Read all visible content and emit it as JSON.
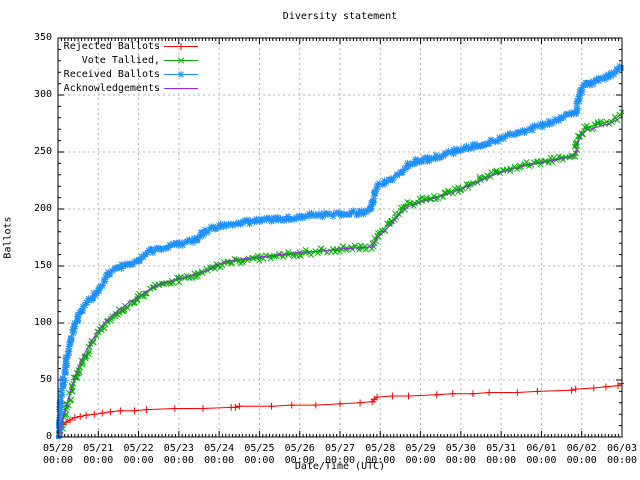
{
  "chart_data": {
    "type": "line",
    "title": "Diversity statement",
    "xlabel": "Date/Time (UTC)",
    "ylabel": "Ballots",
    "grid": true,
    "legend_position": "top-left",
    "ylim": [
      0,
      350
    ],
    "y_ticks": [
      0,
      50,
      100,
      150,
      200,
      250,
      300,
      350
    ],
    "x_axis_note": "x in days since 05/20 00:00 UTC, major tick per day",
    "xlim_days": [
      0,
      14
    ],
    "x_ticks": [
      {
        "date": "05/20",
        "time": "00:00"
      },
      {
        "date": "05/21",
        "time": "00:00"
      },
      {
        "date": "05/22",
        "time": "00:00"
      },
      {
        "date": "05/23",
        "time": "00:00"
      },
      {
        "date": "05/24",
        "time": "00:00"
      },
      {
        "date": "05/25",
        "time": "00:00"
      },
      {
        "date": "05/26",
        "time": "00:00"
      },
      {
        "date": "05/27",
        "time": "00:00"
      },
      {
        "date": "05/28",
        "time": "00:00"
      },
      {
        "date": "05/29",
        "time": "00:00"
      },
      {
        "date": "05/30",
        "time": "00:00"
      },
      {
        "date": "05/31",
        "time": "00:00"
      },
      {
        "date": "06/01",
        "time": "00:00"
      },
      {
        "date": "06/02",
        "time": "00:00"
      },
      {
        "date": "06/03",
        "time": "00:00"
      }
    ],
    "series": [
      {
        "name": "Rejected Ballots",
        "color": "#ff0000",
        "marker": "plus",
        "dense": false,
        "points": [
          [
            0,
            0
          ],
          [
            0.04,
            4
          ],
          [
            0.08,
            8
          ],
          [
            0.13,
            11
          ],
          [
            0.2,
            13
          ],
          [
            0.3,
            15
          ],
          [
            0.42,
            17
          ],
          [
            0.55,
            18
          ],
          [
            0.7,
            19
          ],
          [
            0.9,
            20
          ],
          [
            1.1,
            21
          ],
          [
            1.3,
            22
          ],
          [
            1.55,
            23
          ],
          [
            1.9,
            23
          ],
          [
            2.2,
            24
          ],
          [
            2.9,
            25
          ],
          [
            3.6,
            25
          ],
          [
            4.3,
            26
          ],
          [
            4.4,
            26
          ],
          [
            4.5,
            27
          ],
          [
            5.3,
            27
          ],
          [
            5.8,
            28
          ],
          [
            6.4,
            28
          ],
          [
            7.0,
            29
          ],
          [
            7.5,
            30
          ],
          [
            7.8,
            31
          ],
          [
            7.85,
            33
          ],
          [
            7.92,
            35
          ],
          [
            8.3,
            36
          ],
          [
            8.7,
            36
          ],
          [
            9.4,
            37
          ],
          [
            9.8,
            38
          ],
          [
            10.3,
            38
          ],
          [
            10.7,
            39
          ],
          [
            11.4,
            39
          ],
          [
            11.9,
            40
          ],
          [
            12.75,
            41
          ],
          [
            12.85,
            42
          ],
          [
            13.3,
            43
          ],
          [
            13.6,
            44
          ],
          [
            13.9,
            45
          ],
          [
            14,
            47
          ]
        ]
      },
      {
        "name": "Vote Tallied,",
        "color": "#00b000",
        "marker": "cross",
        "dense": true,
        "points": [
          [
            0,
            0
          ],
          [
            0.05,
            5
          ],
          [
            0.1,
            12
          ],
          [
            0.17,
            20
          ],
          [
            0.25,
            30
          ],
          [
            0.33,
            40
          ],
          [
            0.42,
            50
          ],
          [
            0.5,
            58
          ],
          [
            0.6,
            66
          ],
          [
            0.7,
            73
          ],
          [
            0.8,
            79
          ],
          [
            0.9,
            85
          ],
          [
            1.0,
            90
          ],
          [
            1.1,
            95
          ],
          [
            1.2,
            100
          ],
          [
            1.35,
            105
          ],
          [
            1.5,
            109
          ],
          [
            1.65,
            113
          ],
          [
            1.8,
            117
          ],
          [
            2.0,
            122
          ],
          [
            2.2,
            127
          ],
          [
            2.4,
            131
          ],
          [
            2.6,
            134
          ],
          [
            2.8,
            136
          ],
          [
            3.0,
            138
          ],
          [
            3.2,
            140
          ],
          [
            3.5,
            143
          ],
          [
            3.8,
            147
          ],
          [
            4.0,
            151
          ],
          [
            4.2,
            153
          ],
          [
            4.5,
            155
          ],
          [
            5.0,
            157
          ],
          [
            5.5,
            159
          ],
          [
            6.0,
            161
          ],
          [
            6.5,
            163
          ],
          [
            7.0,
            165
          ],
          [
            7.5,
            166
          ],
          [
            7.8,
            167
          ],
          [
            7.86,
            172
          ],
          [
            7.95,
            178
          ],
          [
            8.1,
            183
          ],
          [
            8.25,
            188
          ],
          [
            8.4,
            194
          ],
          [
            8.55,
            200
          ],
          [
            8.7,
            204
          ],
          [
            9.0,
            207
          ],
          [
            9.3,
            210
          ],
          [
            9.6,
            213
          ],
          [
            9.9,
            217
          ],
          [
            10.2,
            221
          ],
          [
            10.5,
            226
          ],
          [
            10.9,
            232
          ],
          [
            11.2,
            235
          ],
          [
            11.5,
            238
          ],
          [
            11.9,
            241
          ],
          [
            12.2,
            243
          ],
          [
            12.5,
            245
          ],
          [
            12.75,
            247
          ],
          [
            12.85,
            250
          ],
          [
            12.92,
            262
          ],
          [
            13.0,
            268
          ],
          [
            13.1,
            271
          ],
          [
            13.3,
            273
          ],
          [
            13.5,
            275
          ],
          [
            13.7,
            277
          ],
          [
            13.85,
            280
          ],
          [
            14,
            283
          ]
        ]
      },
      {
        "name": "Received Ballots",
        "color": "#1e90ff",
        "marker": "asterisk",
        "dense": true,
        "points": [
          [
            0,
            0
          ],
          [
            0.03,
            10
          ],
          [
            0.07,
            28
          ],
          [
            0.12,
            46
          ],
          [
            0.18,
            60
          ],
          [
            0.25,
            74
          ],
          [
            0.32,
            86
          ],
          [
            0.4,
            96
          ],
          [
            0.5,
            105
          ],
          [
            0.6,
            112
          ],
          [
            0.72,
            118
          ],
          [
            0.85,
            123
          ],
          [
            1.0,
            128
          ],
          [
            1.1,
            134
          ],
          [
            1.2,
            140
          ],
          [
            1.3,
            144
          ],
          [
            1.45,
            147
          ],
          [
            1.6,
            150
          ],
          [
            1.8,
            152
          ],
          [
            2.0,
            155
          ],
          [
            2.15,
            160
          ],
          [
            2.3,
            163
          ],
          [
            2.5,
            165
          ],
          [
            2.75,
            167
          ],
          [
            3.0,
            169
          ],
          [
            3.25,
            171
          ],
          [
            3.45,
            173
          ],
          [
            3.6,
            179
          ],
          [
            3.8,
            183
          ],
          [
            4.0,
            185
          ],
          [
            4.3,
            186
          ],
          [
            4.6,
            188
          ],
          [
            5.0,
            190
          ],
          [
            5.5,
            191
          ],
          [
            6.0,
            193
          ],
          [
            6.5,
            195
          ],
          [
            7.0,
            196
          ],
          [
            7.5,
            197
          ],
          [
            7.75,
            199
          ],
          [
            7.8,
            206
          ],
          [
            7.85,
            214
          ],
          [
            7.95,
            220
          ],
          [
            8.1,
            224
          ],
          [
            8.3,
            227
          ],
          [
            8.5,
            232
          ],
          [
            8.7,
            239
          ],
          [
            8.9,
            242
          ],
          [
            9.2,
            244
          ],
          [
            9.5,
            246
          ],
          [
            9.8,
            250
          ],
          [
            10.0,
            253
          ],
          [
            10.3,
            255
          ],
          [
            10.6,
            257
          ],
          [
            11.0,
            262
          ],
          [
            11.4,
            267
          ],
          [
            11.8,
            271
          ],
          [
            12.2,
            276
          ],
          [
            12.5,
            280
          ],
          [
            12.75,
            283
          ],
          [
            12.87,
            285
          ],
          [
            12.92,
            298
          ],
          [
            13.0,
            306
          ],
          [
            13.1,
            309
          ],
          [
            13.25,
            311
          ],
          [
            13.4,
            313
          ],
          [
            13.55,
            315
          ],
          [
            13.7,
            317
          ],
          [
            13.85,
            321
          ],
          [
            14,
            325
          ]
        ]
      },
      {
        "name": "Acknowledgements",
        "color": "#a020f0",
        "marker": "none",
        "dense": false,
        "points": [
          [
            0,
            0
          ],
          [
            0.05,
            7
          ],
          [
            0.1,
            14
          ],
          [
            0.17,
            23
          ],
          [
            0.25,
            33
          ],
          [
            0.33,
            43
          ],
          [
            0.42,
            53
          ],
          [
            0.5,
            61
          ],
          [
            0.6,
            69
          ],
          [
            0.7,
            76
          ],
          [
            0.8,
            82
          ],
          [
            0.9,
            88
          ],
          [
            1.0,
            93
          ],
          [
            1.1,
            98
          ],
          [
            1.2,
            102
          ],
          [
            1.35,
            107
          ],
          [
            1.5,
            111
          ],
          [
            1.65,
            115
          ],
          [
            1.8,
            119
          ],
          [
            2.0,
            123
          ],
          [
            2.2,
            128
          ],
          [
            2.4,
            132
          ],
          [
            2.6,
            135
          ],
          [
            2.8,
            137
          ],
          [
            3.0,
            139
          ],
          [
            3.2,
            141
          ],
          [
            3.5,
            144
          ],
          [
            3.8,
            148
          ],
          [
            4.0,
            152
          ],
          [
            4.2,
            154
          ],
          [
            4.5,
            156
          ],
          [
            5.0,
            158
          ],
          [
            5.5,
            160
          ],
          [
            6.0,
            162
          ],
          [
            6.5,
            163
          ],
          [
            7.0,
            165
          ],
          [
            7.5,
            166
          ],
          [
            7.8,
            167
          ],
          [
            7.86,
            171
          ],
          [
            7.95,
            176
          ],
          [
            8.1,
            181
          ],
          [
            8.25,
            186
          ],
          [
            8.4,
            192
          ],
          [
            8.55,
            198
          ],
          [
            8.7,
            202
          ],
          [
            9.0,
            206
          ],
          [
            9.3,
            209
          ],
          [
            9.6,
            212
          ],
          [
            9.9,
            216
          ],
          [
            10.2,
            220
          ],
          [
            10.5,
            225
          ],
          [
            10.9,
            231
          ],
          [
            11.2,
            234
          ],
          [
            11.5,
            237
          ],
          [
            11.9,
            240
          ],
          [
            12.2,
            242
          ],
          [
            12.5,
            244
          ],
          [
            12.75,
            246
          ],
          [
            12.85,
            248
          ],
          [
            12.92,
            259
          ],
          [
            13.0,
            265
          ],
          [
            13.1,
            269
          ],
          [
            13.3,
            271
          ],
          [
            13.5,
            273
          ],
          [
            13.7,
            275
          ],
          [
            13.85,
            278
          ],
          [
            14,
            281
          ]
        ]
      }
    ],
    "style": {
      "grid_color": "#b4b4b4",
      "border_color": "#000000",
      "background": "#ffffff"
    }
  }
}
